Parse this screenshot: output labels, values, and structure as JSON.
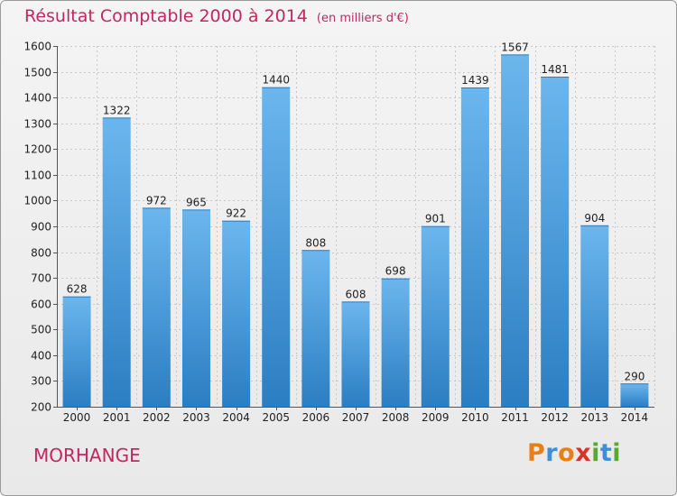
{
  "header": {
    "title": "Résultat Comptable 2000 à 2014",
    "unit": "(en milliers d'€)"
  },
  "footer": {
    "commune": "MORHANGE",
    "logo": "Proxiti",
    "logo_letter_colors": [
      "#e8801a",
      "#3c8fd8",
      "#e8801a",
      "#d8322a",
      "#5aa832",
      "#3c8fd8",
      "#5aa832"
    ]
  },
  "colors": {
    "accent_text": "#c0285f",
    "bar_top": "#6cb6ee",
    "bar_bottom": "#2b7ec2"
  },
  "chart_data": {
    "type": "bar",
    "title": "Résultat Comptable 2000 à 2014",
    "subtitle": "(en milliers d'€)",
    "categories": [
      "2000",
      "2001",
      "2002",
      "2003",
      "2004",
      "2005",
      "2006",
      "2007",
      "2008",
      "2009",
      "2010",
      "2011",
      "2012",
      "2013",
      "2014"
    ],
    "values": [
      628,
      1322,
      972,
      965,
      922,
      1440,
      808,
      608,
      698,
      901,
      1439,
      1567,
      1481,
      904,
      290
    ],
    "ylim": [
      200,
      1600
    ],
    "yticks": [
      200,
      300,
      400,
      500,
      600,
      700,
      800,
      900,
      1000,
      1100,
      1200,
      1300,
      1400,
      1500,
      1600
    ],
    "grid": true,
    "show_value_labels": true,
    "xlabel": "",
    "ylabel": ""
  }
}
